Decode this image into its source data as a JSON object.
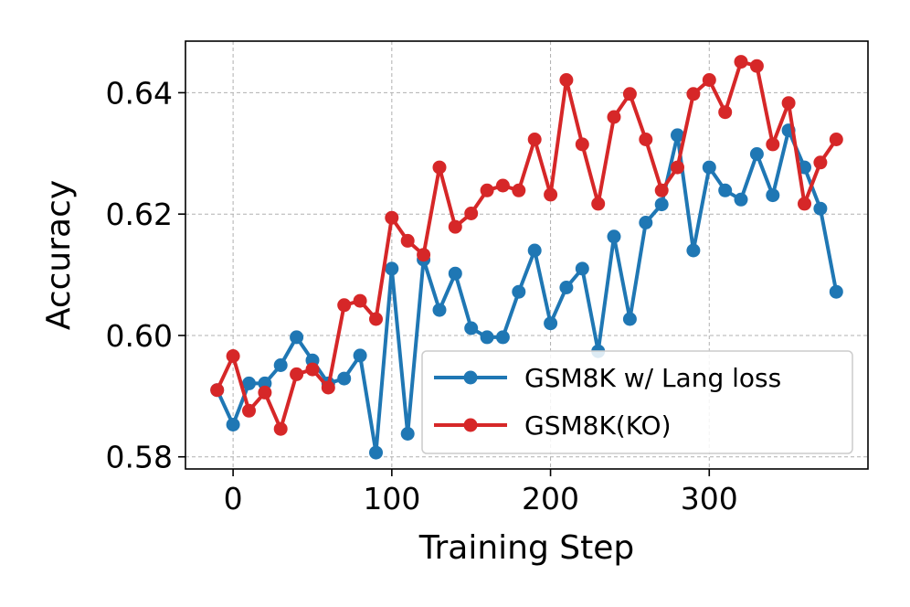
{
  "chart_data": {
    "type": "line",
    "title": "",
    "xlabel": "Training Step",
    "ylabel": "Accuracy",
    "xlim": [
      -30,
      400
    ],
    "ylim": [
      0.578,
      0.6485
    ],
    "xticks": [
      0,
      100,
      200,
      300
    ],
    "xtick_labels": [
      "0",
      "100",
      "200",
      "300"
    ],
    "yticks": [
      0.58,
      0.6,
      0.62,
      0.64
    ],
    "ytick_labels": [
      "0.58",
      "0.60",
      "0.62",
      "0.64"
    ],
    "grid": true,
    "legend_position": "lower-right",
    "series": [
      {
        "name": "GSM8K w/ Lang loss",
        "color": "#1f77b4",
        "x": [
          -10,
          0,
          10,
          20,
          30,
          40,
          50,
          60,
          70,
          80,
          90,
          100,
          110,
          120,
          130,
          140,
          150,
          160,
          170,
          180,
          190,
          200,
          210,
          220,
          230,
          240,
          250,
          260,
          270,
          280,
          290,
          300,
          310,
          320,
          330,
          340,
          350,
          360,
          370,
          380
        ],
        "y": [
          0.591,
          0.5853,
          0.5921,
          0.5921,
          0.5951,
          0.5997,
          0.5959,
          0.5921,
          0.5929,
          0.5967,
          0.5807,
          0.611,
          0.5838,
          0.6125,
          0.6042,
          0.6102,
          0.6012,
          0.5997,
          0.5997,
          0.6072,
          0.614,
          0.602,
          0.6079,
          0.611,
          0.5974,
          0.6163,
          0.6027,
          0.6186,
          0.6216,
          0.633,
          0.614,
          0.6277,
          0.6239,
          0.6224,
          0.6299,
          0.6231,
          0.6338,
          0.6277,
          0.6209,
          0.6072
        ]
      },
      {
        "name": "GSM8K(KO)",
        "color": "#d62728",
        "x": [
          -10,
          0,
          10,
          20,
          30,
          40,
          50,
          60,
          70,
          80,
          90,
          100,
          110,
          120,
          130,
          140,
          150,
          160,
          170,
          180,
          190,
          200,
          210,
          220,
          230,
          240,
          250,
          260,
          270,
          280,
          290,
          300,
          310,
          320,
          330,
          340,
          350,
          360,
          370,
          380
        ],
        "y": [
          0.591,
          0.5966,
          0.5876,
          0.5906,
          0.5846,
          0.5936,
          0.5944,
          0.5914,
          0.605,
          0.6057,
          0.6027,
          0.6194,
          0.6156,
          0.6133,
          0.6277,
          0.6179,
          0.6201,
          0.6239,
          0.6247,
          0.6239,
          0.6323,
          0.6232,
          0.6421,
          0.6315,
          0.6217,
          0.636,
          0.6398,
          0.6323,
          0.6239,
          0.6277,
          0.6398,
          0.6421,
          0.6368,
          0.6451,
          0.6444,
          0.6315,
          0.6383,
          0.6217,
          0.6285,
          0.6323
        ]
      }
    ]
  }
}
